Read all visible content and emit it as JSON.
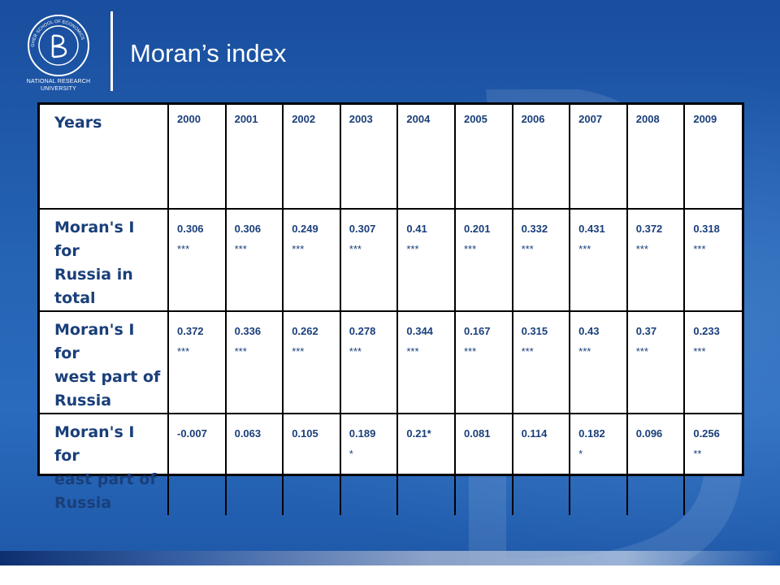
{
  "header": {
    "title": "Moran’s index",
    "logo": {
      "seal_text": "HIGHER SCHOOL OF ECONOMICS",
      "line1": "NATIONAL RESEARCH",
      "line2": "UNIVERSITY"
    }
  },
  "table": {
    "header_label": "Years",
    "years": [
      "2000",
      "2001",
      "2002",
      "2003",
      "2004",
      "2005",
      "2006",
      "2007",
      "2008",
      "2009"
    ],
    "rows": [
      {
        "label_lines": [
          "Moran's I for",
          "Russia in",
          "total"
        ],
        "cells": [
          [
            "0.306",
            "***"
          ],
          [
            "0.306",
            "***"
          ],
          [
            "0.249",
            "***"
          ],
          [
            "0.307",
            "***"
          ],
          [
            "0.41",
            "***"
          ],
          [
            "0.201",
            "***"
          ],
          [
            "0.332",
            "***"
          ],
          [
            "0.431",
            "***"
          ],
          [
            "0.372",
            "***"
          ],
          [
            "0.318",
            "***"
          ]
        ]
      },
      {
        "label_lines": [
          "Moran's I for",
          "west part of",
          "Russia"
        ],
        "cells": [
          [
            "0.372",
            "***"
          ],
          [
            "0.336",
            "***"
          ],
          [
            "0.262",
            "***"
          ],
          [
            "0.278",
            "***"
          ],
          [
            "0.344",
            "***"
          ],
          [
            "0.167",
            "***"
          ],
          [
            "0.315",
            "***"
          ],
          [
            "0.43",
            "***"
          ],
          [
            "0.37",
            "***"
          ],
          [
            "0.233",
            "***"
          ]
        ]
      },
      {
        "label_lines": [
          "Moran's I for",
          "east part of",
          "Russia"
        ],
        "cells": [
          [
            "-0.007",
            ""
          ],
          [
            "0.063",
            ""
          ],
          [
            "0.105",
            ""
          ],
          [
            "0.189",
            "*"
          ],
          [
            "0.21*",
            ""
          ],
          [
            "0.081",
            ""
          ],
          [
            "0.114",
            ""
          ],
          [
            "0.182",
            "*"
          ],
          [
            "0.096",
            ""
          ],
          [
            "0.256",
            "**"
          ]
        ]
      }
    ]
  },
  "colors": {
    "background": "#1f57a8",
    "table_text": "#1a3f7a",
    "title_text": "#ffffff"
  }
}
